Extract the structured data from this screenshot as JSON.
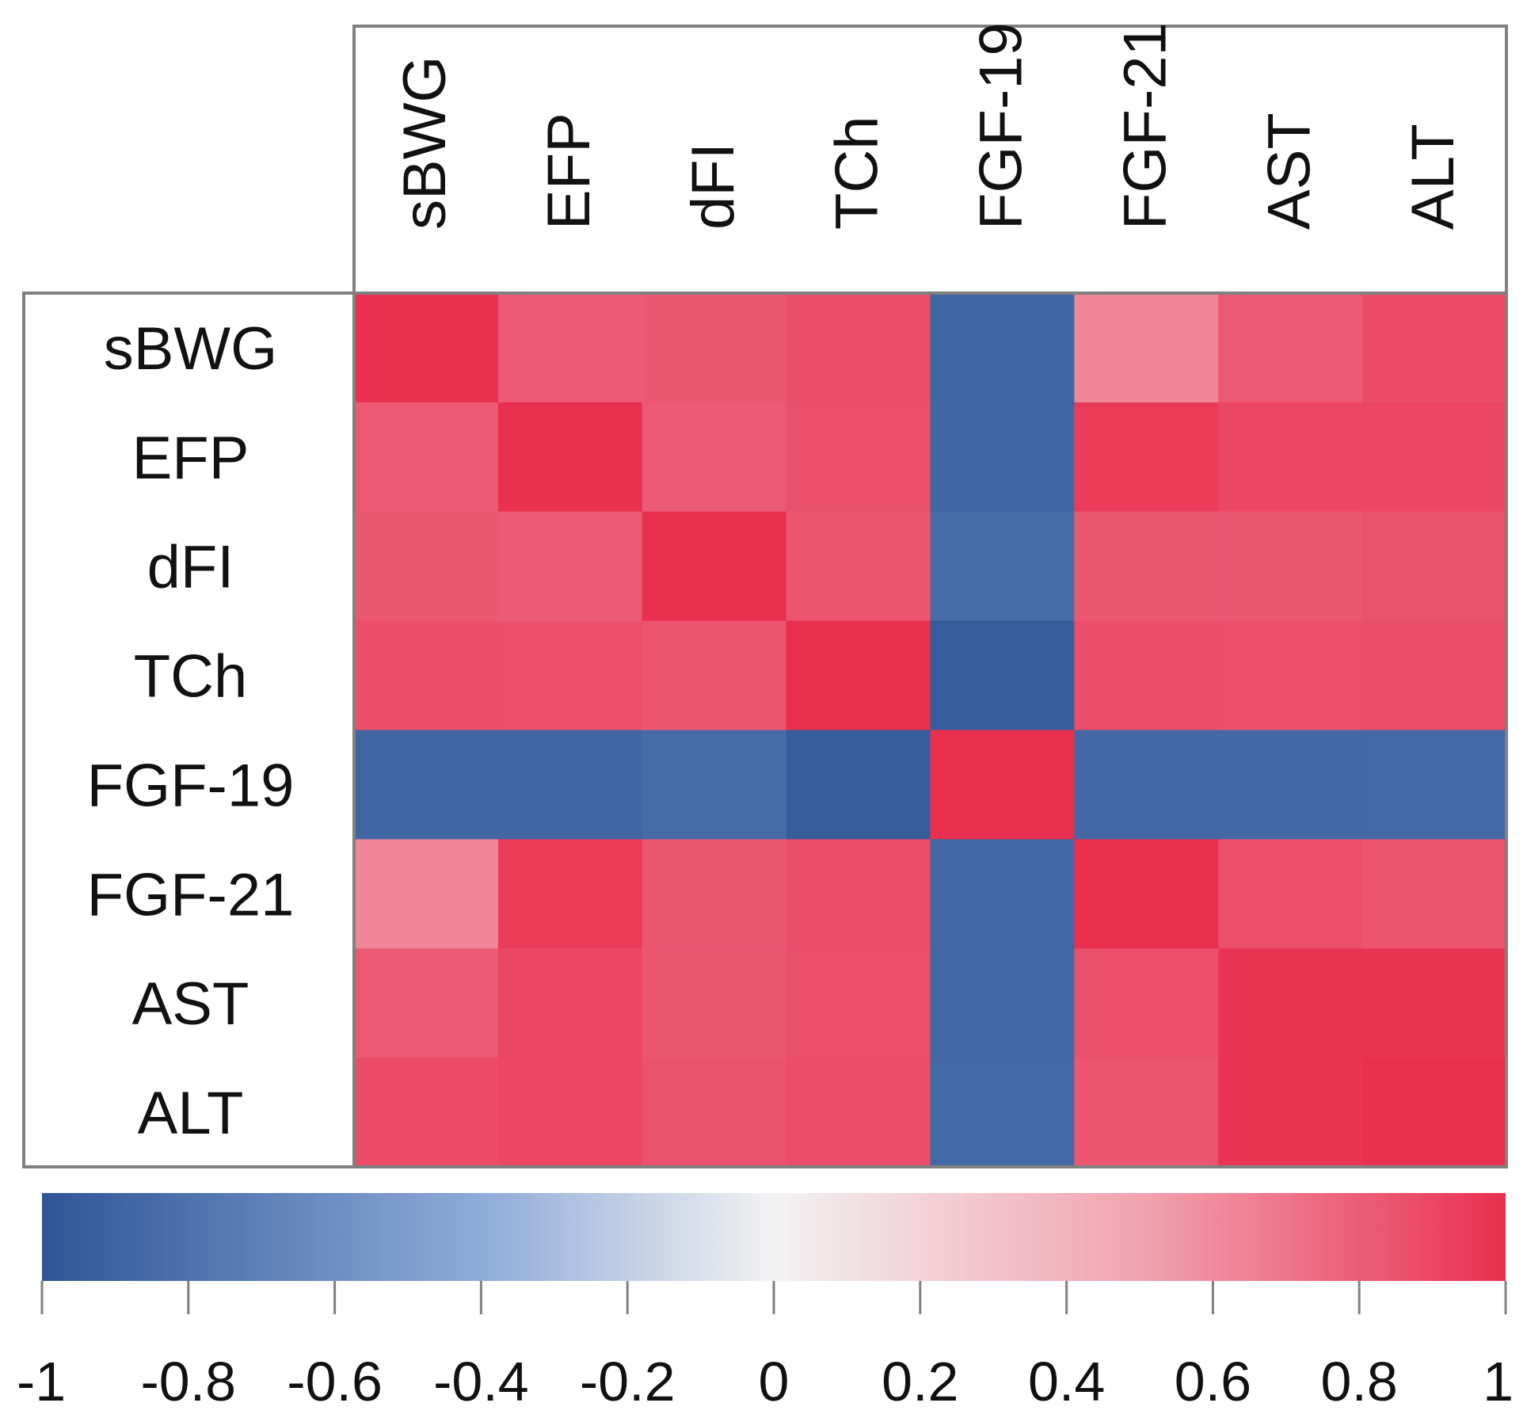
{
  "chart_data": {
    "type": "heatmap",
    "title": "",
    "variables": [
      "sBWG",
      "EFP",
      "dFI",
      "TCh",
      "FGF-19",
      "FGF-21",
      "AST",
      "ALT"
    ],
    "row_labels": [
      "sBWG",
      "EFP",
      "dFI",
      "TCh",
      "FGF-19",
      "FGF-21",
      "AST",
      "ALT"
    ],
    "col_labels": [
      "sBWG",
      "EFP",
      "dFI",
      "TCh",
      "FGF-19",
      "FGF-21",
      "AST",
      "ALT"
    ],
    "matrix": [
      [
        1.0,
        0.82,
        0.83,
        0.87,
        -0.88,
        0.62,
        0.82,
        0.88
      ],
      [
        0.82,
        1.0,
        0.82,
        0.86,
        -0.88,
        0.95,
        0.9,
        0.9
      ],
      [
        0.83,
        0.82,
        1.0,
        0.84,
        -0.85,
        0.83,
        0.83,
        0.85
      ],
      [
        0.87,
        0.86,
        0.84,
        1.0,
        -0.95,
        0.87,
        0.86,
        0.87
      ],
      [
        -0.88,
        -0.88,
        -0.85,
        -0.95,
        1.0,
        -0.87,
        -0.87,
        -0.86
      ],
      [
        0.62,
        0.95,
        0.83,
        0.87,
        -0.87,
        1.0,
        0.86,
        0.84
      ],
      [
        0.82,
        0.9,
        0.83,
        0.86,
        -0.87,
        0.86,
        0.98,
        0.98
      ],
      [
        0.88,
        0.9,
        0.85,
        0.87,
        -0.86,
        0.84,
        0.98,
        1.0
      ]
    ],
    "color_scale": {
      "min": -1,
      "max": 1,
      "ticks": [
        -1,
        -0.8,
        -0.6,
        -0.4,
        -0.2,
        0,
        0.2,
        0.4,
        0.6,
        0.8,
        1
      ],
      "tick_labels": [
        "-1",
        "-0.8",
        "-0.6",
        "-0.4",
        "-0.2",
        "0",
        "0.2",
        "0.4",
        "0.6",
        "0.8",
        "1"
      ],
      "stops": [
        {
          "value": -1,
          "color": "#2f5597"
        },
        {
          "value": -0.4,
          "color": "#8fabd8"
        },
        {
          "value": 0,
          "color": "#f2f2f2"
        },
        {
          "value": 0.5,
          "color": "#f1a3b0"
        },
        {
          "value": 1,
          "color": "#e9304f"
        }
      ],
      "placement": "bottom"
    },
    "colors": {
      "border": "#808080",
      "text": "#111111"
    }
  }
}
